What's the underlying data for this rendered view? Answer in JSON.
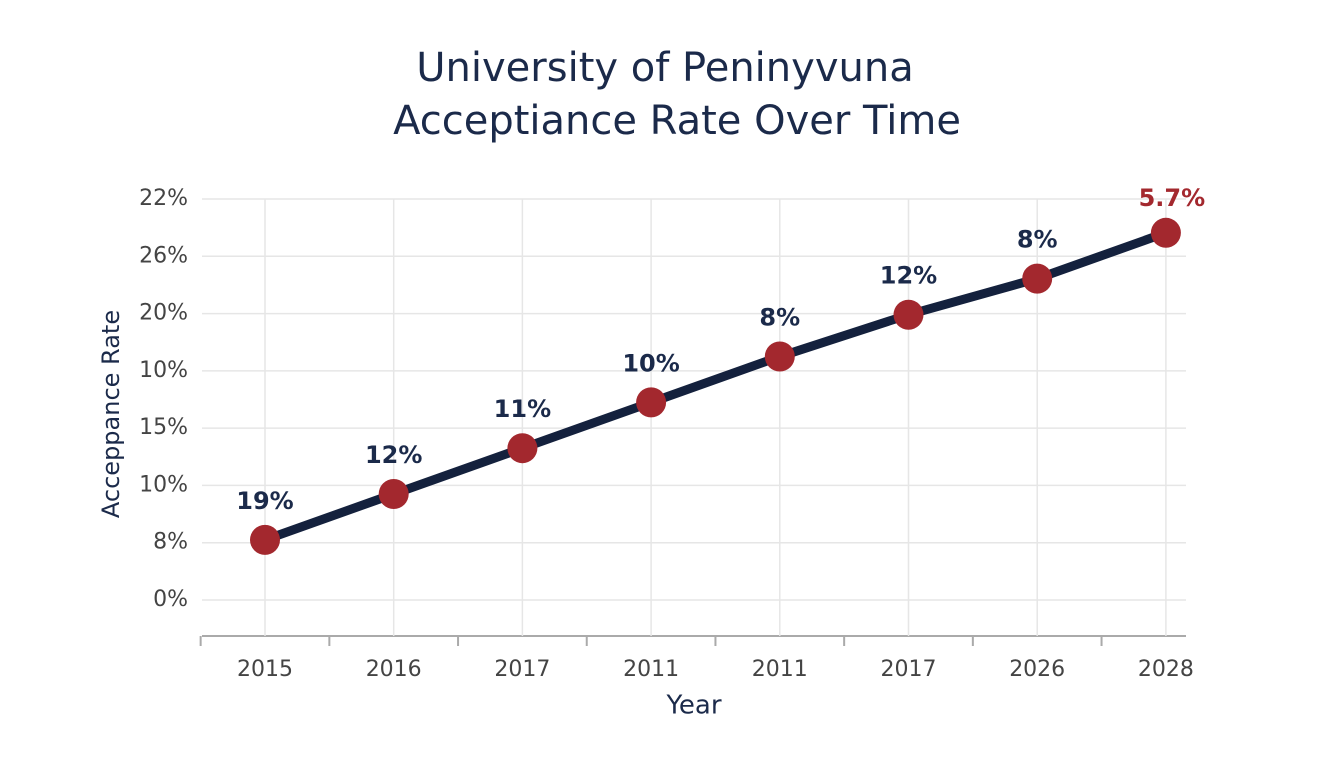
{
  "chart_data": {
    "type": "line",
    "title": [
      "University of Peninyvuna",
      "Acceptiance Rate Over Time"
    ],
    "x_label": "Year",
    "y_label": "Acceppance  Rate",
    "categories": [
      "2015",
      "2016",
      "2017",
      "2011",
      "2011",
      "2017",
      "2026",
      "2028"
    ],
    "y_categories": [
      "0%",
      "8%",
      "10%",
      "15%",
      "10%",
      "20%",
      "26%",
      "22%"
    ],
    "ylim": [
      -0.63,
      7
    ],
    "series": [
      {
        "color": "#14213d",
        "marker_color": "#a3282e",
        "values": [
          1.05,
          1.85,
          2.65,
          3.45,
          4.25,
          4.98,
          5.61,
          6.41
        ],
        "point_labels": [
          "19%",
          "12%",
          "11%",
          "10%",
          "8%",
          "12%",
          "8%",
          "5.7%"
        ],
        "label_colors": [
          "#1b2a4a",
          "#1b2a4a",
          "#1b2a4a",
          "#1b2a4a",
          "#1b2a4a",
          "#1b2a4a",
          "#1b2a4a",
          "#a3282e"
        ]
      }
    ],
    "grid": true
  }
}
